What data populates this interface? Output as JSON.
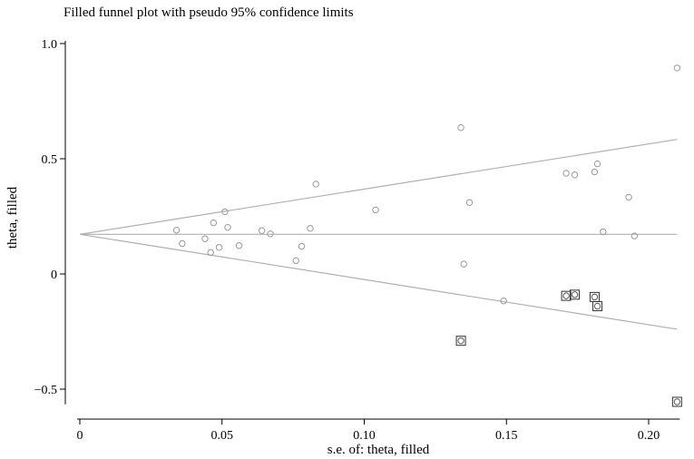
{
  "chart_data": {
    "type": "scatter",
    "title": "Filled funnel plot with pseudo 95% confidence limits",
    "xlabel": "s.e. of: theta, filled",
    "ylabel": "theta, filled",
    "xlim": [
      0,
      0.21
    ],
    "ylim": [
      -0.55,
      1.0
    ],
    "x_ticks": [
      0,
      0.05,
      0.1,
      0.15,
      0.2
    ],
    "x_tick_labels": [
      "0",
      "0.05",
      "0.10",
      "0.15",
      "0.20"
    ],
    "y_ticks": [
      -0.5,
      0,
      0.5,
      1.0
    ],
    "y_tick_labels": [
      "−0.5",
      "0",
      "0.5",
      "1.0"
    ],
    "grid": false,
    "pooled_estimate": 0.172,
    "funnel_lines": {
      "center": [
        [
          0,
          0.172
        ],
        [
          0.21,
          0.172
        ]
      ],
      "upper": [
        [
          0,
          0.172
        ],
        [
          0.21,
          0.584
        ]
      ],
      "lower": [
        [
          0,
          0.172
        ],
        [
          0.21,
          -0.24
        ]
      ]
    },
    "series": [
      {
        "marker": "circle",
        "x": [
          0.034,
          0.036,
          0.044,
          0.046,
          0.047,
          0.049,
          0.051,
          0.052,
          0.056,
          0.064,
          0.067,
          0.076,
          0.078,
          0.081,
          0.083,
          0.104,
          0.134,
          0.135,
          0.137,
          0.149,
          0.171,
          0.174,
          0.181,
          0.182,
          0.184,
          0.193,
          0.195,
          0.21
        ],
        "y": [
          0.19,
          0.132,
          0.153,
          0.093,
          0.222,
          0.115,
          0.27,
          0.202,
          0.123,
          0.188,
          0.174,
          0.058,
          0.12,
          0.198,
          0.39,
          0.278,
          0.635,
          0.043,
          0.31,
          -0.117,
          0.437,
          0.43,
          0.443,
          0.478,
          0.183,
          0.333,
          0.165,
          0.894
        ]
      },
      {
        "marker": "boxed-circle",
        "x": [
          0.134,
          0.171,
          0.174,
          0.181,
          0.182,
          0.21
        ],
        "y": [
          -0.29,
          -0.095,
          -0.09,
          -0.1,
          -0.14,
          -0.555
        ]
      }
    ]
  }
}
